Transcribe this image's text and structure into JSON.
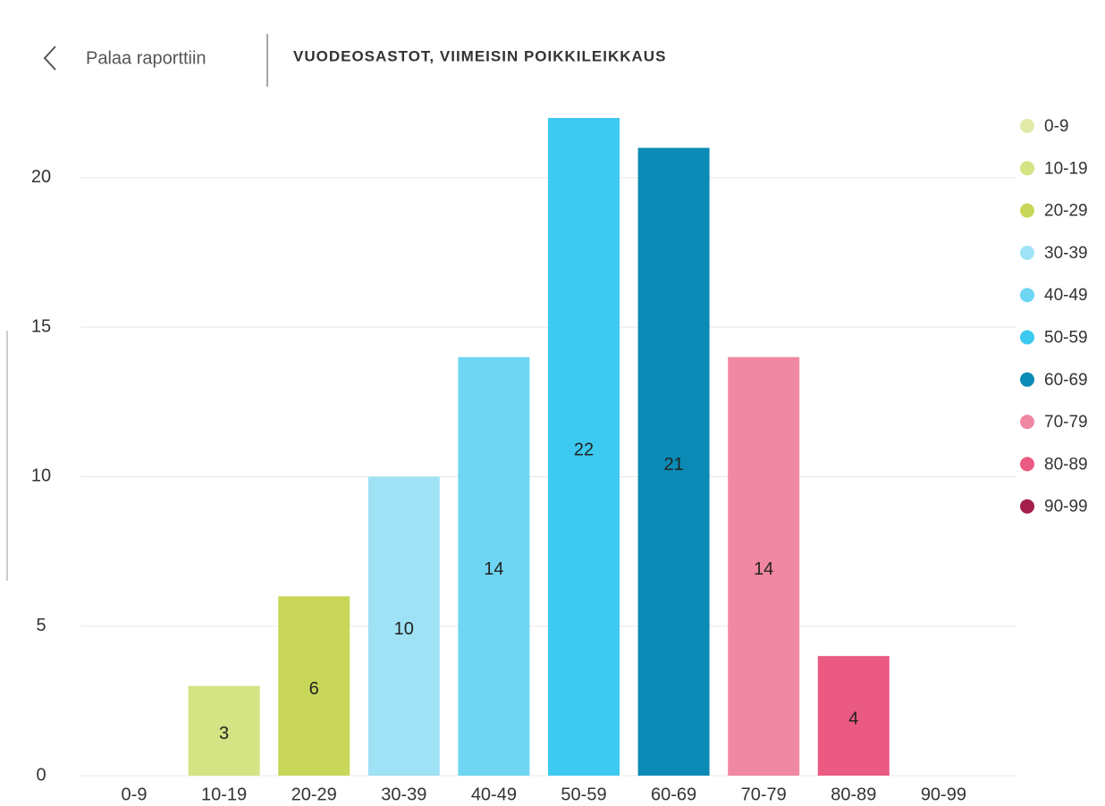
{
  "header": {
    "back": "Palaa raporttiin",
    "title": "VUODEOSASTOT, VIIMEISIN POIKKILEIKKAUS"
  },
  "chart_data": {
    "type": "bar",
    "categories": [
      "0-9",
      "10-19",
      "20-29",
      "30-39",
      "40-49",
      "50-59",
      "60-69",
      "70-79",
      "80-89",
      "90-99"
    ],
    "values": [
      0,
      3,
      6,
      10,
      14,
      22,
      21,
      14,
      4,
      0
    ],
    "colors": [
      "#e2eaa8",
      "#d4e383",
      "#c8d75a",
      "#9fe2f5",
      "#6ed5f3",
      "#3dc9f0",
      "#0a8ab5",
      "#f087a3",
      "#eb5a82",
      "#a41e4b"
    ],
    "ylim": [
      0,
      22
    ],
    "yticks": [
      0,
      5,
      10,
      15,
      20
    ],
    "grid": true,
    "legend": "right"
  }
}
